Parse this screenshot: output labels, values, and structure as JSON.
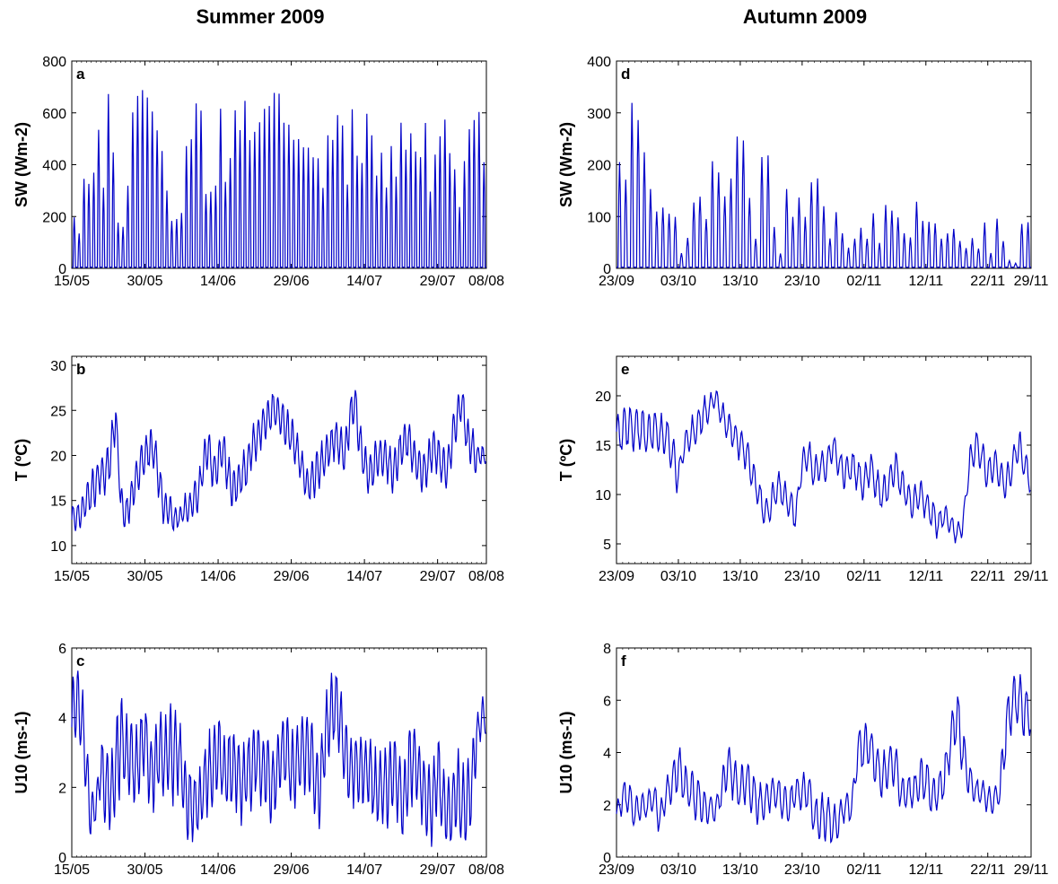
{
  "column_titles": [
    "Summer 2009",
    "Autumn 2009"
  ],
  "colors": {
    "line": "#0000c8",
    "axes": "#000000",
    "background": "#ffffff"
  },
  "chart_data": [
    {
      "panel": "a",
      "type": "line",
      "ylabel": "SW (Wm-2)",
      "ylim": [
        0,
        800
      ],
      "yticks": [
        "0",
        "200",
        "400",
        "600",
        "800"
      ],
      "xticks": [
        "15/05",
        "30/05",
        "14/06",
        "29/06",
        "14/07",
        "29/07",
        "08/08"
      ],
      "xrange_days": [
        "2009-05-15",
        "2009-08-08"
      ],
      "series_kind": "diurnal",
      "daily_peak": [
        200,
        140,
        350,
        340,
        380,
        560,
        320,
        700,
        460,
        180,
        160,
        320,
        620,
        670,
        700,
        670,
        620,
        560,
        460,
        300,
        190,
        200,
        220,
        490,
        520,
        640,
        640,
        300,
        300,
        330,
        640,
        340,
        430,
        620,
        560,
        660,
        500,
        550,
        570,
        620,
        650,
        680,
        680,
        580,
        560,
        520,
        510,
        480,
        470,
        440,
        430,
        320,
        520,
        500,
        610,
        580,
        330,
        620,
        450,
        410,
        600,
        540,
        360,
        460,
        320,
        480,
        360,
        570,
        460,
        530,
        460,
        450,
        580,
        300,
        460,
        520,
        580,
        450,
        400,
        240,
        430,
        560,
        600,
        610,
        420,
        450
      ]
    },
    {
      "panel": "b",
      "type": "line",
      "ylabel": "T (ºC)",
      "ylim": [
        8,
        31
      ],
      "yticks": [
        "10",
        "15",
        "20",
        "25",
        "30"
      ],
      "xticks": [
        "15/05",
        "30/05",
        "14/06",
        "29/06",
        "14/07",
        "29/07",
        "08/08"
      ],
      "xrange_days": [
        "2009-05-15",
        "2009-08-08"
      ],
      "series_kind": "diurnal",
      "daily_mean": [
        13,
        13,
        14,
        15,
        16,
        17,
        18,
        18,
        20,
        25,
        15,
        13,
        15,
        17,
        19,
        20,
        21,
        20,
        17,
        14,
        14,
        13,
        13,
        14,
        14,
        15,
        16,
        19,
        21,
        18,
        19,
        21,
        18,
        16,
        17,
        18,
        19,
        21,
        22,
        23,
        24,
        25,
        25,
        24,
        23,
        22,
        21,
        19,
        17,
        17,
        18,
        19,
        20,
        21,
        22,
        21,
        20,
        24,
        26,
        22,
        19,
        18,
        19,
        20,
        20,
        19,
        18,
        20,
        21,
        22,
        20,
        19,
        18,
        19,
        21,
        20,
        19,
        18,
        22,
        24,
        26,
        22,
        21,
        20,
        20,
        20
      ],
      "daily_amp": [
        1.5,
        1.5,
        1.5,
        1.8,
        2,
        2,
        2,
        2.2,
        2.5,
        1,
        1.5,
        2,
        2,
        2,
        2,
        2,
        2,
        2,
        2,
        1.5,
        1.5,
        1,
        1,
        1.5,
        1.5,
        2,
        2,
        2,
        2,
        2,
        2,
        2,
        2,
        2,
        2,
        2,
        2,
        2,
        2,
        2,
        2,
        2,
        2,
        2,
        2,
        2,
        2,
        2,
        2,
        2,
        2,
        2,
        2,
        2,
        2,
        2,
        2,
        2,
        2,
        2,
        2,
        2,
        2,
        2,
        2,
        2,
        2,
        2,
        2,
        2,
        2,
        2,
        2,
        2,
        2,
        2,
        2,
        2,
        2,
        2,
        2,
        2,
        2,
        1,
        1,
        1
      ]
    },
    {
      "panel": "c",
      "type": "line",
      "ylabel": "U10 (ms-1)",
      "ylim": [
        0,
        6
      ],
      "yticks": [
        "0",
        "2",
        "4",
        "6"
      ],
      "xticks": [
        "15/05",
        "30/05",
        "14/06",
        "29/06",
        "14/07",
        "29/07",
        "08/08"
      ],
      "xrange_days": [
        "2009-05-15",
        "2009-08-08"
      ],
      "series_kind": "diurnal",
      "daily_mean": [
        3.8,
        4.5,
        4,
        2.5,
        1.3,
        1.5,
        2.5,
        2,
        1.8,
        2.5,
        3.5,
        3,
        3,
        2.5,
        3,
        3.5,
        2.5,
        2.5,
        3,
        2.8,
        3,
        3,
        3,
        2,
        1.5,
        1.5,
        1.5,
        2,
        2.5,
        2.5,
        3,
        2.5,
        2.5,
        2.5,
        2.5,
        2,
        2.5,
        2.5,
        3,
        2.5,
        2.5,
        2,
        2.5,
        3,
        3,
        2.5,
        2.5,
        3,
        3,
        3,
        2,
        2,
        3.5,
        4,
        4.5,
        4,
        3,
        2.5,
        2.5,
        2.5,
        2.5,
        2.5,
        2,
        2,
        2,
        2,
        2.5,
        2,
        1.5,
        2.5,
        3,
        2.5,
        2,
        1.5,
        1.5,
        2.5,
        1.5,
        1.2,
        1.5,
        2,
        1.5,
        1.5,
        2,
        3.5,
        4,
        4
      ],
      "daily_amp": [
        1,
        1,
        1,
        1,
        0.5,
        0.5,
        1,
        1,
        1,
        1.3,
        1,
        1,
        1,
        1,
        1,
        1,
        1,
        1,
        1,
        1,
        1.3,
        1,
        1,
        1,
        1,
        0.8,
        0.8,
        1,
        1,
        1,
        1,
        1,
        1,
        1,
        1,
        1,
        1,
        1,
        1,
        1,
        1,
        1,
        1,
        1,
        1,
        1,
        1,
        1,
        1,
        1,
        1,
        1,
        1,
        1,
        1,
        1,
        1,
        1,
        1,
        1,
        1,
        1,
        1,
        1,
        1,
        1,
        1,
        1,
        1,
        1.2,
        1,
        1,
        1,
        1,
        1,
        1,
        1,
        1,
        1,
        1,
        1,
        1,
        1,
        0.5,
        0.5,
        0.5
      ]
    },
    {
      "panel": "d",
      "type": "line",
      "ylabel": "SW (Wm-2)",
      "ylim": [
        0,
        400
      ],
      "yticks": [
        "0",
        "100",
        "200",
        "300",
        "400"
      ],
      "xticks": [
        "23/09",
        "03/10",
        "13/10",
        "23/10",
        "02/11",
        "12/11",
        "22/11",
        "29/11"
      ],
      "xrange_days": [
        "2009-09-23",
        "2009-11-29"
      ],
      "series_kind": "diurnal",
      "daily_peak": [
        205,
        175,
        320,
        300,
        225,
        155,
        110,
        120,
        110,
        100,
        30,
        60,
        130,
        145,
        100,
        215,
        190,
        145,
        175,
        255,
        255,
        140,
        60,
        225,
        220,
        80,
        30,
        155,
        100,
        140,
        100,
        170,
        175,
        120,
        60,
        110,
        70,
        40,
        60,
        80,
        60,
        110,
        50,
        125,
        115,
        100,
        70,
        60,
        130,
        95,
        90,
        90,
        60,
        70,
        80,
        55,
        40,
        60,
        40,
        90,
        30,
        100,
        55,
        15,
        10,
        90,
        90,
        30
      ]
    },
    {
      "panel": "e",
      "type": "line",
      "ylabel": "T (ºC)",
      "ylim": [
        3,
        24
      ],
      "yticks": [
        "5",
        "10",
        "15",
        "20"
      ],
      "xticks": [
        "23/09",
        "03/10",
        "13/10",
        "23/10",
        "02/11",
        "12/11",
        "22/11",
        "29/11"
      ],
      "xrange_days": [
        "2009-09-23",
        "2009-11-29"
      ],
      "series_kind": "diurnal",
      "daily_mean": [
        16,
        16.5,
        17,
        16.5,
        16.5,
        16,
        16.5,
        16,
        16,
        14,
        12,
        15,
        16,
        17,
        18,
        19,
        20,
        18,
        17,
        16,
        15,
        14,
        12,
        10,
        8,
        9,
        11,
        10,
        9,
        8,
        13,
        14,
        12,
        13,
        13,
        15,
        13,
        12,
        13,
        12,
        11,
        13,
        11,
        10,
        11,
        13,
        11,
        10,
        9,
        10,
        9,
        8,
        7,
        8,
        7,
        6,
        7,
        13,
        15,
        14,
        12,
        13,
        12,
        11,
        13,
        15,
        13,
        11,
        10,
        12,
        13,
        14,
        13,
        12,
        10,
        10,
        10,
        11
      ],
      "daily_amp": [
        2,
        2,
        2,
        2,
        2,
        2,
        2,
        2,
        2,
        2,
        1,
        1.5,
        1.5,
        1.5,
        1.5,
        1,
        1,
        1.5,
        1.5,
        1.5,
        1.5,
        1.5,
        1.5,
        1.5,
        1.5,
        1.5,
        1.5,
        1.5,
        1.5,
        1,
        1.5,
        1.5,
        1.5,
        1.5,
        1.5,
        1.5,
        1.5,
        1.5,
        1.5,
        1.5,
        1.5,
        1.5,
        1.5,
        1.5,
        1.5,
        1.5,
        1.5,
        1.5,
        1.5,
        1.5,
        1.5,
        1.5,
        1,
        1,
        1,
        1,
        1,
        1.5,
        1.5,
        1.5,
        1.5,
        1.5,
        1.5,
        1.5,
        1.5,
        1.5,
        1.5,
        1.5,
        1.5,
        1,
        1,
        1,
        1,
        1,
        1,
        1,
        1,
        1
      ]
    },
    {
      "panel": "f",
      "type": "line",
      "ylabel": "U10 (ms-1)",
      "ylim": [
        0,
        8
      ],
      "yticks": [
        "0",
        "2",
        "4",
        "6",
        "8"
      ],
      "xticks": [
        "23/09",
        "03/10",
        "13/10",
        "23/10",
        "02/11",
        "12/11",
        "22/11",
        "29/11"
      ],
      "xrange_days": [
        "2009-09-23",
        "2009-11-29"
      ],
      "series_kind": "diurnal",
      "daily_mean": [
        1.6,
        2.3,
        2.3,
        1.7,
        1.9,
        2,
        2.3,
        1.5,
        2.3,
        2.8,
        3.5,
        2.8,
        2.5,
        2.3,
        2,
        1.8,
        1.8,
        2.5,
        3.5,
        3,
        2.5,
        3,
        2.5,
        2,
        2,
        2.5,
        2.5,
        2,
        2,
        2.5,
        2.5,
        2.5,
        1.5,
        1.5,
        1.5,
        1.2,
        1.5,
        2,
        1.8,
        4,
        4.3,
        4.2,
        3.5,
        3,
        3.5,
        3.5,
        2.5,
        2.5,
        2.5,
        2.8,
        3,
        2.3,
        2.5,
        3,
        4.5,
        5.5,
        4,
        3,
        2.5,
        2.5,
        2.2,
        2.2,
        2.5,
        5,
        6,
        6,
        5.5,
        5.5,
        6,
        6.5
      ],
      "daily_amp": [
        0.5,
        0.6,
        0.6,
        0.5,
        0.5,
        0.5,
        0.6,
        0.5,
        0.6,
        0.8,
        0.8,
        0.8,
        0.8,
        0.7,
        0.6,
        0.5,
        0.5,
        0.7,
        0.8,
        0.8,
        0.8,
        0.8,
        0.8,
        0.7,
        0.6,
        0.6,
        0.6,
        0.6,
        0.6,
        0.6,
        0.7,
        0.7,
        0.8,
        0.8,
        0.8,
        0.7,
        0.5,
        0.5,
        0.5,
        0.8,
        0.8,
        0.8,
        0.8,
        0.8,
        0.8,
        0.8,
        0.6,
        0.6,
        0.6,
        0.8,
        0.8,
        0.6,
        0.7,
        0.8,
        0.9,
        0.9,
        0.8,
        0.6,
        0.5,
        0.5,
        0.5,
        0.5,
        0.8,
        1,
        1,
        1,
        1,
        1,
        1,
        1
      ]
    }
  ]
}
